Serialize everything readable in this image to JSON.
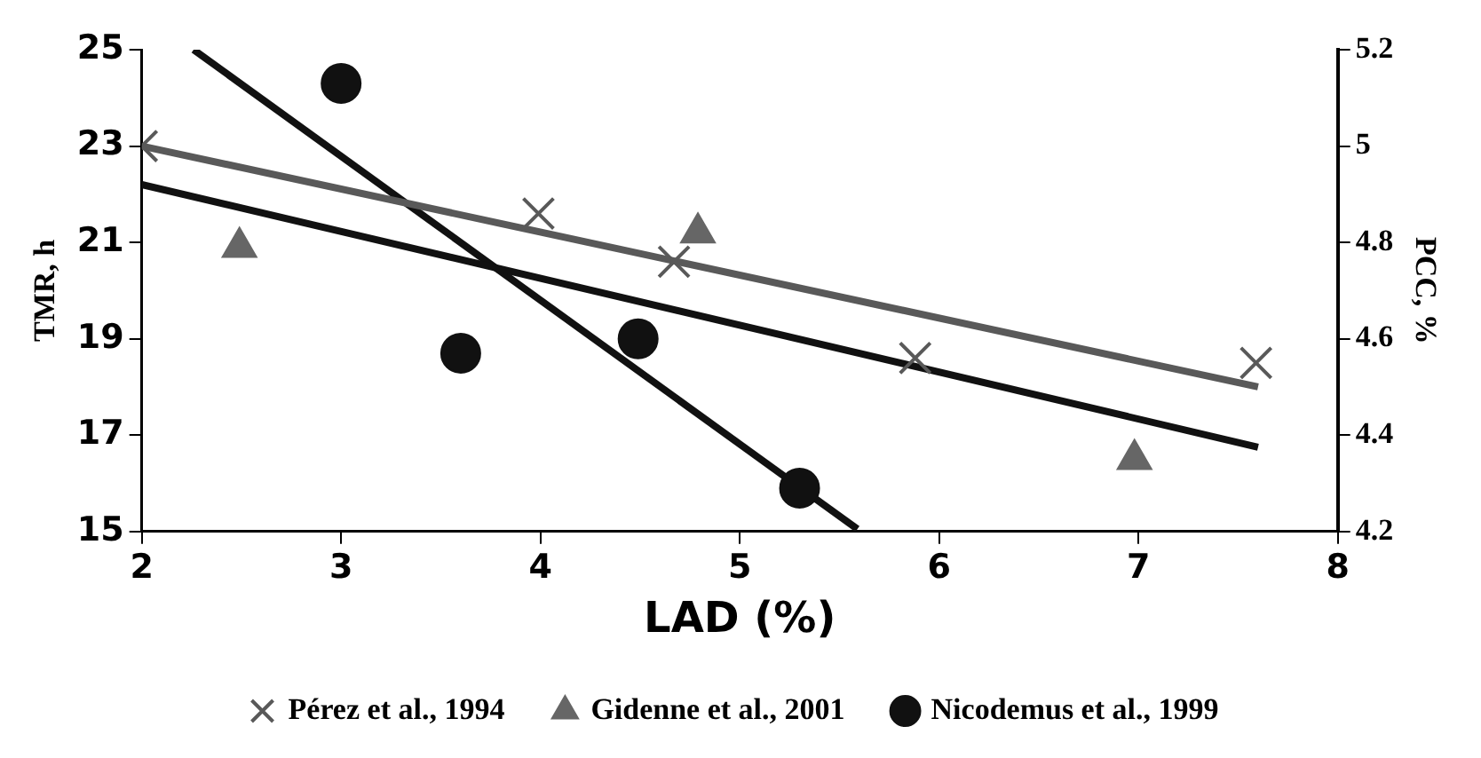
{
  "chart_data": {
    "type": "scatter",
    "xlabel": "LAD (%)",
    "ylabel": "TMR, h",
    "y2label": "PCC, %",
    "xlim": [
      2,
      8
    ],
    "xticks": [
      2,
      3,
      4,
      5,
      6,
      7,
      8
    ],
    "ylim": [
      15,
      25
    ],
    "yticks": [
      15,
      17,
      19,
      21,
      23,
      25
    ],
    "y2lim": [
      4.2,
      5.2
    ],
    "y2ticks": [
      4.2,
      4.4,
      4.6,
      4.8,
      5,
      5.2
    ],
    "grid": false,
    "legend": "bottom",
    "series": [
      {
        "name": "Pérez et al., 1994",
        "marker": "cross",
        "color": "#595959",
        "x": [
          2,
          3.99,
          4.67,
          5.88,
          7.59
        ],
        "values": [
          23.0,
          21.6,
          20.6,
          18.6,
          18.5
        ]
      },
      {
        "name": "Gidenne et al., 2001",
        "marker": "triangle",
        "color": "#666666",
        "x": [
          2.49,
          4.79,
          6.98
        ],
        "values": [
          20.9,
          21.2,
          16.5
        ]
      },
      {
        "name": "Nicodemus et al., 1999",
        "marker": "circle",
        "color": "#111111",
        "x": [
          3,
          3.6,
          4.49,
          5.3
        ],
        "values": [
          24.3,
          18.7,
          19.0,
          15.9
        ]
      },
      {
        "type": "line",
        "marker": "none",
        "color": "#595959",
        "x": [
          2,
          7.6
        ],
        "values": [
          23.0,
          18.0
        ]
      },
      {
        "type": "line",
        "marker": "none",
        "color": "#111111",
        "x": [
          2,
          7.6
        ],
        "values": [
          22.2,
          16.75
        ]
      },
      {
        "type": "line",
        "marker": "none",
        "color": "#111111",
        "x": [
          2.26,
          5.59
        ],
        "values": [
          25,
          15.05
        ]
      }
    ]
  }
}
